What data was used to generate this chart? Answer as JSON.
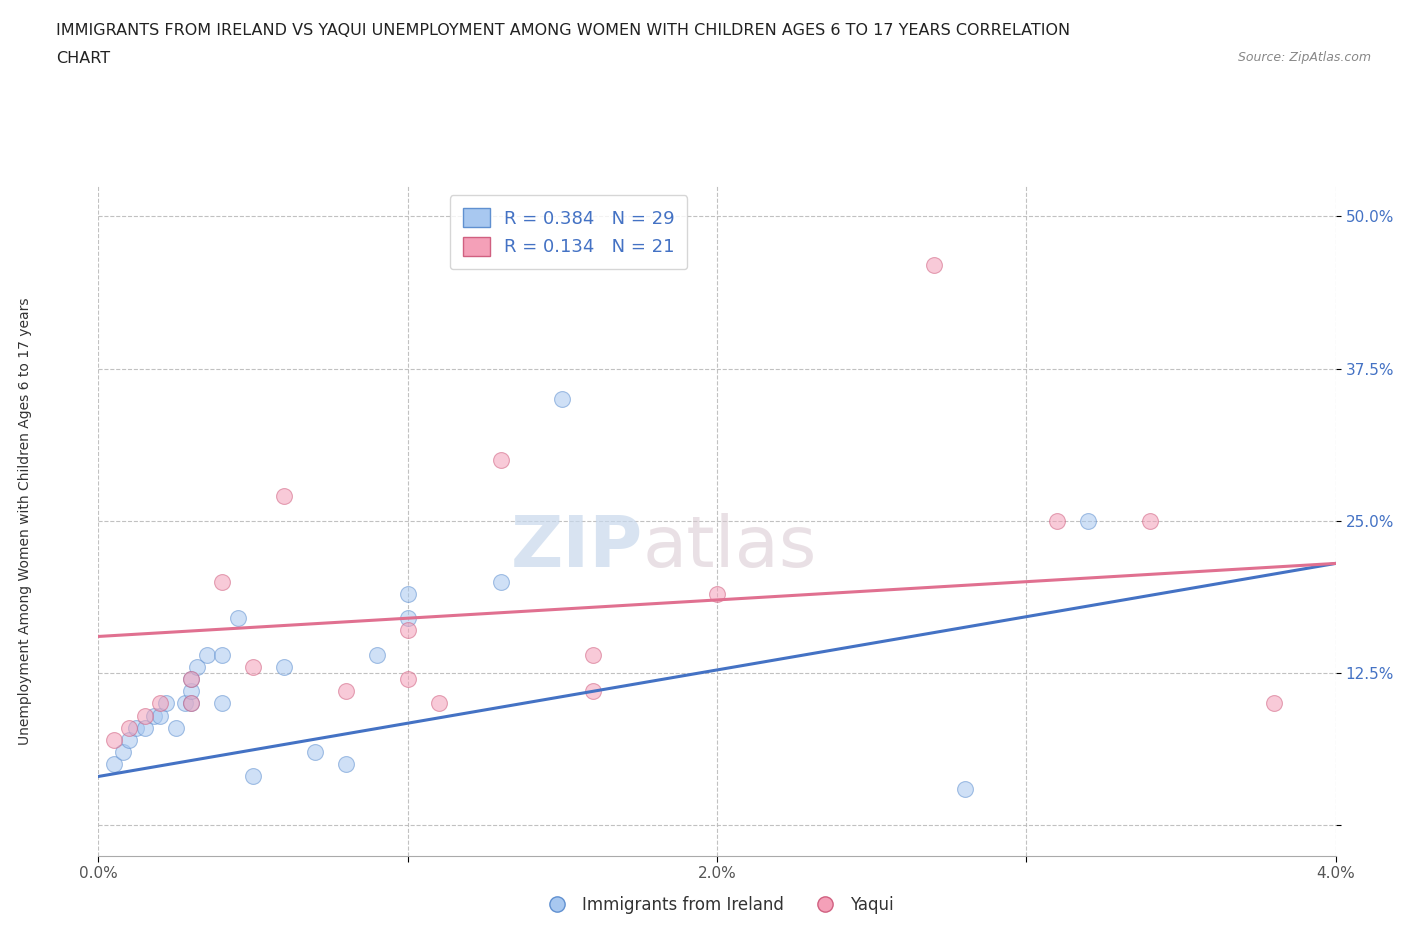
{
  "title_line1": "IMMIGRANTS FROM IRELAND VS YAQUI UNEMPLOYMENT AMONG WOMEN WITH CHILDREN AGES 6 TO 17 YEARS CORRELATION",
  "title_line2": "CHART",
  "source": "Source: ZipAtlas.com",
  "ylabel": "Unemployment Among Women with Children Ages 6 to 17 years",
  "xlim": [
    0.0,
    0.04
  ],
  "ylim": [
    -0.025,
    0.525
  ],
  "yticks": [
    0.0,
    0.125,
    0.25,
    0.375,
    0.5
  ],
  "ytick_labels": [
    "",
    "12.5%",
    "25.0%",
    "37.5%",
    "50.0%"
  ],
  "xticks": [
    0.0,
    0.01,
    0.02,
    0.03,
    0.04
  ],
  "xtick_labels": [
    "0.0%",
    "",
    "2.0%",
    "",
    "4.0%"
  ],
  "blue_R": 0.384,
  "blue_N": 29,
  "pink_R": 0.134,
  "pink_N": 21,
  "blue_color": "#A8C8F0",
  "pink_color": "#F4A0B8",
  "blue_line_color": "#4472C4",
  "pink_line_color": "#E07090",
  "blue_edge_color": "#6090D0",
  "pink_edge_color": "#D06080",
  "legend_blue_label": "Immigrants from Ireland",
  "legend_pink_label": "Yaqui",
  "watermark_zip": "ZIP",
  "watermark_atlas": "atlas",
  "blue_x": [
    0.0005,
    0.0008,
    0.001,
    0.0012,
    0.0015,
    0.0018,
    0.002,
    0.0022,
    0.0025,
    0.0028,
    0.003,
    0.003,
    0.003,
    0.0032,
    0.0035,
    0.004,
    0.004,
    0.0045,
    0.005,
    0.006,
    0.007,
    0.008,
    0.009,
    0.01,
    0.01,
    0.013,
    0.015,
    0.028,
    0.032
  ],
  "blue_y": [
    0.05,
    0.06,
    0.07,
    0.08,
    0.08,
    0.09,
    0.09,
    0.1,
    0.08,
    0.1,
    0.1,
    0.11,
    0.12,
    0.13,
    0.14,
    0.1,
    0.14,
    0.17,
    0.04,
    0.13,
    0.06,
    0.05,
    0.14,
    0.17,
    0.19,
    0.2,
    0.35,
    0.03,
    0.25
  ],
  "pink_x": [
    0.0005,
    0.001,
    0.0015,
    0.002,
    0.003,
    0.003,
    0.004,
    0.005,
    0.006,
    0.008,
    0.01,
    0.01,
    0.011,
    0.013,
    0.016,
    0.016,
    0.02,
    0.027,
    0.031,
    0.034,
    0.038
  ],
  "pink_y": [
    0.07,
    0.08,
    0.09,
    0.1,
    0.1,
    0.12,
    0.2,
    0.13,
    0.27,
    0.11,
    0.12,
    0.16,
    0.1,
    0.3,
    0.11,
    0.14,
    0.19,
    0.46,
    0.25,
    0.25,
    0.1
  ],
  "blue_trend_x": [
    0.0,
    0.04
  ],
  "blue_trend_y": [
    0.04,
    0.215
  ],
  "pink_trend_x": [
    0.0,
    0.04
  ],
  "pink_trend_y": [
    0.155,
    0.215
  ],
  "background_color": "#FFFFFF",
  "grid_color": "#BBBBBB",
  "marker_size": 130,
  "marker_alpha": 0.55
}
